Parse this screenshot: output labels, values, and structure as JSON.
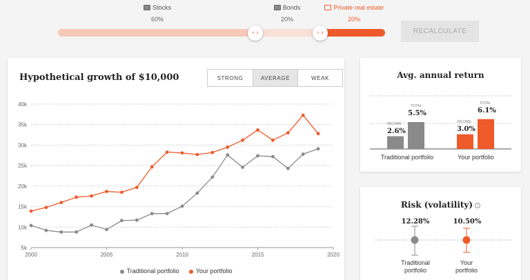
{
  "allocation": {
    "stocks": {
      "label": "Stocks",
      "percent": "60%"
    },
    "bonds": {
      "label": "Bonds",
      "percent": "20%"
    },
    "real_estate": {
      "label": "Private real estate",
      "percent": "20%"
    },
    "slider_split": {
      "stocks": 0.6,
      "bonds": 0.2,
      "real_estate": 0.2
    },
    "handle_glyph": "‹ ›",
    "recalculate_label": "RECALCULATE"
  },
  "growth": {
    "title": "Hypothetical growth of $10,000",
    "scenarios": [
      "STRONG",
      "AVERAGE",
      "WEAK"
    ],
    "selected_scenario": "AVERAGE",
    "legend": {
      "traditional": "Traditional portfolio",
      "yours": "Your portfolio"
    }
  },
  "colors": {
    "orange": "#ee5a2a",
    "gray": "#8a8a8a",
    "light_orange": "#f7c9b9"
  },
  "chart_data": {
    "type": "line",
    "x": [
      2000,
      2001,
      2002,
      2003,
      2004,
      2005,
      2006,
      2007,
      2008,
      2009,
      2010,
      2011,
      2012,
      2013,
      2014,
      2015,
      2016,
      2017,
      2018,
      2019
    ],
    "series": [
      {
        "name": "Traditional portfolio",
        "color": "#8a8a8a",
        "values": [
          10400,
          9200,
          8800,
          8800,
          10500,
          9400,
          11600,
          11700,
          13300,
          13300,
          15100,
          18300,
          22200,
          27600,
          24600,
          27400,
          27200,
          24300,
          27800,
          29100
        ]
      },
      {
        "name": "Your portfolio",
        "color": "#ee5a2a",
        "values": [
          13900,
          14800,
          16000,
          17300,
          17600,
          18700,
          18500,
          19700,
          24700,
          28300,
          28100,
          27700,
          28200,
          29500,
          31200,
          33700,
          31200,
          33000,
          37300,
          32800
        ]
      }
    ],
    "ylim": [
      5000,
      40000
    ],
    "yticks": [
      "5k",
      "10k",
      "15k",
      "20k",
      "25k",
      "30k",
      "35k",
      "40k"
    ],
    "xlim": [
      2000,
      2020
    ],
    "xticks": [
      "2000",
      "2005",
      "2010",
      "2015",
      "2020"
    ],
    "grid": true
  },
  "avg_return": {
    "title": "Avg. annual return",
    "income_label": "INCOME",
    "total_label": "TOTAL",
    "traditional": {
      "name": "Traditional portfolio",
      "income": "2.6%",
      "total": "5.5%",
      "income_value": 2.6,
      "total_value": 5.5
    },
    "yours": {
      "name": "Your portfolio",
      "income": "3.0%",
      "total": "6.1%",
      "income_value": 3.0,
      "total_value": 6.1
    }
  },
  "risk": {
    "title": "Risk (volatility)",
    "info_glyph": "i",
    "traditional": {
      "name": "Traditional portfolio",
      "value": "12.28%"
    },
    "yours": {
      "name": "Your portfolio",
      "value": "10.50%"
    }
  }
}
